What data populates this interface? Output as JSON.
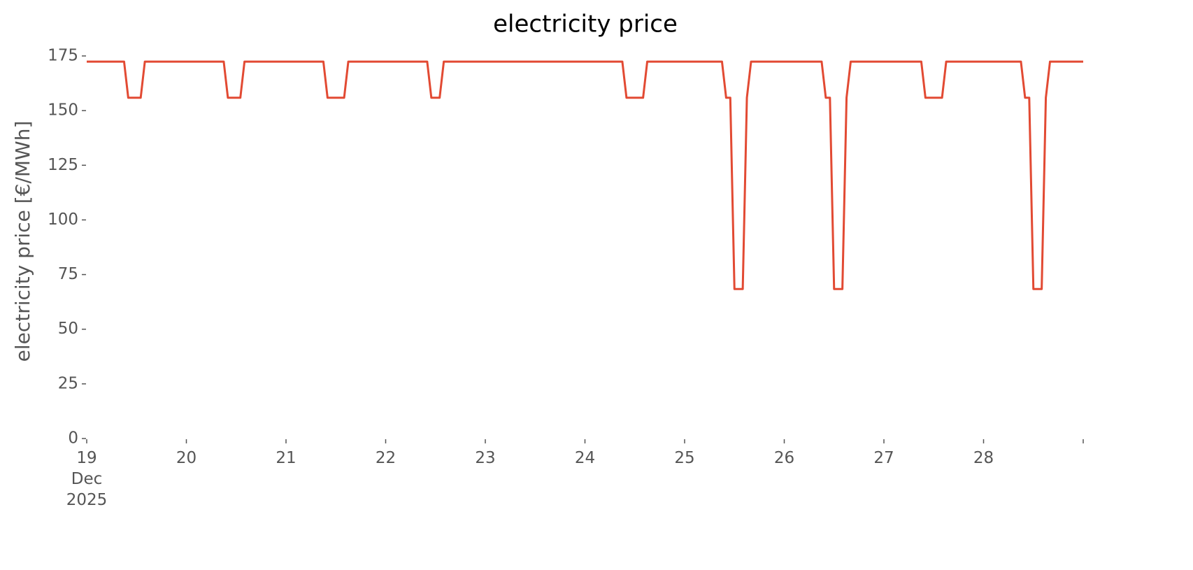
{
  "chart_data": {
    "type": "line",
    "title": "electricity price",
    "ylabel": "electricity price [€/MWh]",
    "xlim": [
      "2025-12-19T00:00",
      "2025-12-29T00:00"
    ],
    "xticks": [
      {
        "value": "2025-12-19T00:00",
        "label": "19\nDec\n2025"
      },
      {
        "value": "2025-12-20T00:00",
        "label": "20"
      },
      {
        "value": "2025-12-21T00:00",
        "label": "21"
      },
      {
        "value": "2025-12-22T00:00",
        "label": "22"
      },
      {
        "value": "2025-12-23T00:00",
        "label": "23"
      },
      {
        "value": "2025-12-24T00:00",
        "label": "24"
      },
      {
        "value": "2025-12-25T00:00",
        "label": "25"
      },
      {
        "value": "2025-12-26T00:00",
        "label": "26"
      },
      {
        "value": "2025-12-27T00:00",
        "label": "27"
      },
      {
        "value": "2025-12-28T00:00",
        "label": "28"
      },
      {
        "value": "2025-12-29T00:00",
        "label": null
      }
    ],
    "ylim": [
      0,
      175
    ],
    "yticks": [
      0,
      25,
      50,
      75,
      100,
      125,
      150,
      175
    ],
    "grid": false,
    "x": [
      "2025-12-19T00:00",
      "2025-12-19T01:00",
      "2025-12-19T02:00",
      "2025-12-19T03:00",
      "2025-12-19T04:00",
      "2025-12-19T05:00",
      "2025-12-19T06:00",
      "2025-12-19T07:00",
      "2025-12-19T08:00",
      "2025-12-19T09:00",
      "2025-12-19T10:00",
      "2025-12-19T11:00",
      "2025-12-19T12:00",
      "2025-12-19T13:00",
      "2025-12-19T14:00",
      "2025-12-19T15:00",
      "2025-12-19T16:00",
      "2025-12-19T17:00",
      "2025-12-19T18:00",
      "2025-12-19T19:00",
      "2025-12-19T20:00",
      "2025-12-19T21:00",
      "2025-12-19T22:00",
      "2025-12-19T23:00",
      "2025-12-20T00:00",
      "2025-12-20T01:00",
      "2025-12-20T02:00",
      "2025-12-20T03:00",
      "2025-12-20T04:00",
      "2025-12-20T05:00",
      "2025-12-20T06:00",
      "2025-12-20T07:00",
      "2025-12-20T08:00",
      "2025-12-20T09:00",
      "2025-12-20T10:00",
      "2025-12-20T11:00",
      "2025-12-20T12:00",
      "2025-12-20T13:00",
      "2025-12-20T14:00",
      "2025-12-20T15:00",
      "2025-12-20T16:00",
      "2025-12-20T17:00",
      "2025-12-20T18:00",
      "2025-12-20T19:00",
      "2025-12-20T20:00",
      "2025-12-20T21:00",
      "2025-12-20T22:00",
      "2025-12-20T23:00",
      "2025-12-21T00:00",
      "2025-12-21T01:00",
      "2025-12-21T02:00",
      "2025-12-21T03:00",
      "2025-12-21T04:00",
      "2025-12-21T05:00",
      "2025-12-21T06:00",
      "2025-12-21T07:00",
      "2025-12-21T08:00",
      "2025-12-21T09:00",
      "2025-12-21T10:00",
      "2025-12-21T11:00",
      "2025-12-21T12:00",
      "2025-12-21T13:00",
      "2025-12-21T14:00",
      "2025-12-21T15:00",
      "2025-12-21T16:00",
      "2025-12-21T17:00",
      "2025-12-21T18:00",
      "2025-12-21T19:00",
      "2025-12-21T20:00",
      "2025-12-21T21:00",
      "2025-12-21T22:00",
      "2025-12-21T23:00",
      "2025-12-22T00:00",
      "2025-12-22T01:00",
      "2025-12-22T02:00",
      "2025-12-22T03:00",
      "2025-12-22T04:00",
      "2025-12-22T05:00",
      "2025-12-22T06:00",
      "2025-12-22T07:00",
      "2025-12-22T08:00",
      "2025-12-22T09:00",
      "2025-12-22T10:00",
      "2025-12-22T11:00",
      "2025-12-22T12:00",
      "2025-12-22T13:00",
      "2025-12-22T14:00",
      "2025-12-22T15:00",
      "2025-12-22T16:00",
      "2025-12-22T17:00",
      "2025-12-22T18:00",
      "2025-12-22T19:00",
      "2025-12-22T20:00",
      "2025-12-22T21:00",
      "2025-12-22T22:00",
      "2025-12-22T23:00",
      "2025-12-23T00:00",
      "2025-12-23T01:00",
      "2025-12-23T02:00",
      "2025-12-23T03:00",
      "2025-12-23T04:00",
      "2025-12-23T05:00",
      "2025-12-23T06:00",
      "2025-12-23T07:00",
      "2025-12-23T08:00",
      "2025-12-23T09:00",
      "2025-12-23T10:00",
      "2025-12-23T11:00",
      "2025-12-23T12:00",
      "2025-12-23T13:00",
      "2025-12-23T14:00",
      "2025-12-23T15:00",
      "2025-12-23T16:00",
      "2025-12-23T17:00",
      "2025-12-23T18:00",
      "2025-12-23T19:00",
      "2025-12-23T20:00",
      "2025-12-23T21:00",
      "2025-12-23T22:00",
      "2025-12-23T23:00",
      "2025-12-24T00:00",
      "2025-12-24T01:00",
      "2025-12-24T02:00",
      "2025-12-24T03:00",
      "2025-12-24T04:00",
      "2025-12-24T05:00",
      "2025-12-24T06:00",
      "2025-12-24T07:00",
      "2025-12-24T08:00",
      "2025-12-24T09:00",
      "2025-12-24T10:00",
      "2025-12-24T11:00",
      "2025-12-24T12:00",
      "2025-12-24T13:00",
      "2025-12-24T14:00",
      "2025-12-24T15:00",
      "2025-12-24T16:00",
      "2025-12-24T17:00",
      "2025-12-24T18:00",
      "2025-12-24T19:00",
      "2025-12-24T20:00",
      "2025-12-24T21:00",
      "2025-12-24T22:00",
      "2025-12-24T23:00",
      "2025-12-25T00:00",
      "2025-12-25T01:00",
      "2025-12-25T02:00",
      "2025-12-25T03:00",
      "2025-12-25T04:00",
      "2025-12-25T05:00",
      "2025-12-25T06:00",
      "2025-12-25T07:00",
      "2025-12-25T08:00",
      "2025-12-25T09:00",
      "2025-12-25T10:00",
      "2025-12-25T11:00",
      "2025-12-25T12:00",
      "2025-12-25T13:00",
      "2025-12-25T14:00",
      "2025-12-25T15:00",
      "2025-12-25T16:00",
      "2025-12-25T17:00",
      "2025-12-25T18:00",
      "2025-12-25T19:00",
      "2025-12-25T20:00",
      "2025-12-25T21:00",
      "2025-12-25T22:00",
      "2025-12-25T23:00",
      "2025-12-26T00:00",
      "2025-12-26T01:00",
      "2025-12-26T02:00",
      "2025-12-26T03:00",
      "2025-12-26T04:00",
      "2025-12-26T05:00",
      "2025-12-26T06:00",
      "2025-12-26T07:00",
      "2025-12-26T08:00",
      "2025-12-26T09:00",
      "2025-12-26T10:00",
      "2025-12-26T11:00",
      "2025-12-26T12:00",
      "2025-12-26T13:00",
      "2025-12-26T14:00",
      "2025-12-26T15:00",
      "2025-12-26T16:00",
      "2025-12-26T17:00",
      "2025-12-26T18:00",
      "2025-12-26T19:00",
      "2025-12-26T20:00",
      "2025-12-26T21:00",
      "2025-12-26T22:00",
      "2025-12-26T23:00",
      "2025-12-27T00:00",
      "2025-12-27T01:00",
      "2025-12-27T02:00",
      "2025-12-27T03:00",
      "2025-12-27T04:00",
      "2025-12-27T05:00",
      "2025-12-27T06:00",
      "2025-12-27T07:00",
      "2025-12-27T08:00",
      "2025-12-27T09:00",
      "2025-12-27T10:00",
      "2025-12-27T11:00",
      "2025-12-27T12:00",
      "2025-12-27T13:00",
      "2025-12-27T14:00",
      "2025-12-27T15:00",
      "2025-12-27T16:00",
      "2025-12-27T17:00",
      "2025-12-27T18:00",
      "2025-12-27T19:00",
      "2025-12-27T20:00",
      "2025-12-27T21:00",
      "2025-12-27T22:00",
      "2025-12-27T23:00",
      "2025-12-28T00:00",
      "2025-12-28T01:00",
      "2025-12-28T02:00",
      "2025-12-28T03:00",
      "2025-12-28T04:00",
      "2025-12-28T05:00",
      "2025-12-28T06:00",
      "2025-12-28T07:00",
      "2025-12-28T08:00",
      "2025-12-28T09:00",
      "2025-12-28T10:00",
      "2025-12-28T11:00",
      "2025-12-28T12:00",
      "2025-12-28T13:00",
      "2025-12-28T14:00",
      "2025-12-28T15:00",
      "2025-12-28T16:00",
      "2025-12-28T17:00",
      "2025-12-28T18:00",
      "2025-12-28T19:00",
      "2025-12-28T20:00",
      "2025-12-28T21:00",
      "2025-12-28T22:00",
      "2025-12-28T23:00",
      "2025-12-29T00:00"
    ],
    "series": [
      {
        "name": "electricity price",
        "color": "#e24a33",
        "values": [
          172.4,
          172.4,
          172.4,
          172.4,
          172.4,
          172.4,
          172.4,
          172.4,
          172.4,
          172.4,
          155.9,
          155.9,
          155.9,
          155.9,
          172.4,
          172.4,
          172.4,
          172.4,
          172.4,
          172.4,
          172.4,
          172.4,
          172.4,
          172.4,
          172.4,
          172.4,
          172.4,
          172.4,
          172.4,
          172.4,
          172.4,
          172.4,
          172.4,
          172.4,
          155.9,
          155.9,
          155.9,
          155.9,
          172.4,
          172.4,
          172.4,
          172.4,
          172.4,
          172.4,
          172.4,
          172.4,
          172.4,
          172.4,
          172.4,
          172.4,
          172.4,
          172.4,
          172.4,
          172.4,
          172.4,
          172.4,
          172.4,
          172.4,
          155.9,
          155.9,
          155.9,
          155.9,
          155.9,
          172.4,
          172.4,
          172.4,
          172.4,
          172.4,
          172.4,
          172.4,
          172.4,
          172.4,
          172.4,
          172.4,
          172.4,
          172.4,
          172.4,
          172.4,
          172.4,
          172.4,
          172.4,
          172.4,
          172.4,
          155.9,
          155.9,
          155.9,
          172.4,
          172.4,
          172.4,
          172.4,
          172.4,
          172.4,
          172.4,
          172.4,
          172.4,
          172.4,
          172.4,
          172.4,
          172.4,
          172.4,
          172.4,
          172.4,
          172.4,
          172.4,
          172.4,
          172.4,
          172.4,
          172.4,
          172.4,
          172.4,
          172.4,
          172.4,
          172.4,
          172.4,
          172.4,
          172.4,
          172.4,
          172.4,
          172.4,
          172.4,
          172.4,
          172.4,
          172.4,
          172.4,
          172.4,
          172.4,
          172.4,
          172.4,
          172.4,
          172.4,
          155.9,
          155.9,
          155.9,
          155.9,
          155.9,
          172.4,
          172.4,
          172.4,
          172.4,
          172.4,
          172.4,
          172.4,
          172.4,
          172.4,
          172.4,
          172.4,
          172.4,
          172.4,
          172.4,
          172.4,
          172.4,
          172.4,
          172.4,
          172.4,
          155.9,
          155.9,
          68.4,
          68.4,
          68.4,
          155.9,
          172.4,
          172.4,
          172.4,
          172.4,
          172.4,
          172.4,
          172.4,
          172.4,
          172.4,
          172.4,
          172.4,
          172.4,
          172.4,
          172.4,
          172.4,
          172.4,
          172.4,
          172.4,
          155.9,
          155.9,
          68.4,
          68.4,
          68.4,
          155.9,
          172.4,
          172.4,
          172.4,
          172.4,
          172.4,
          172.4,
          172.4,
          172.4,
          172.4,
          172.4,
          172.4,
          172.4,
          172.4,
          172.4,
          172.4,
          172.4,
          172.4,
          172.4,
          155.9,
          155.9,
          155.9,
          155.9,
          155.9,
          172.4,
          172.4,
          172.4,
          172.4,
          172.4,
          172.4,
          172.4,
          172.4,
          172.4,
          172.4,
          172.4,
          172.4,
          172.4,
          172.4,
          172.4,
          172.4,
          172.4,
          172.4,
          172.4,
          155.9,
          155.9,
          68.4,
          68.4,
          68.4,
          155.9,
          172.4,
          172.4,
          172.4,
          172.4,
          172.4,
          172.4,
          172.4,
          172.4,
          172.4
        ]
      }
    ]
  }
}
